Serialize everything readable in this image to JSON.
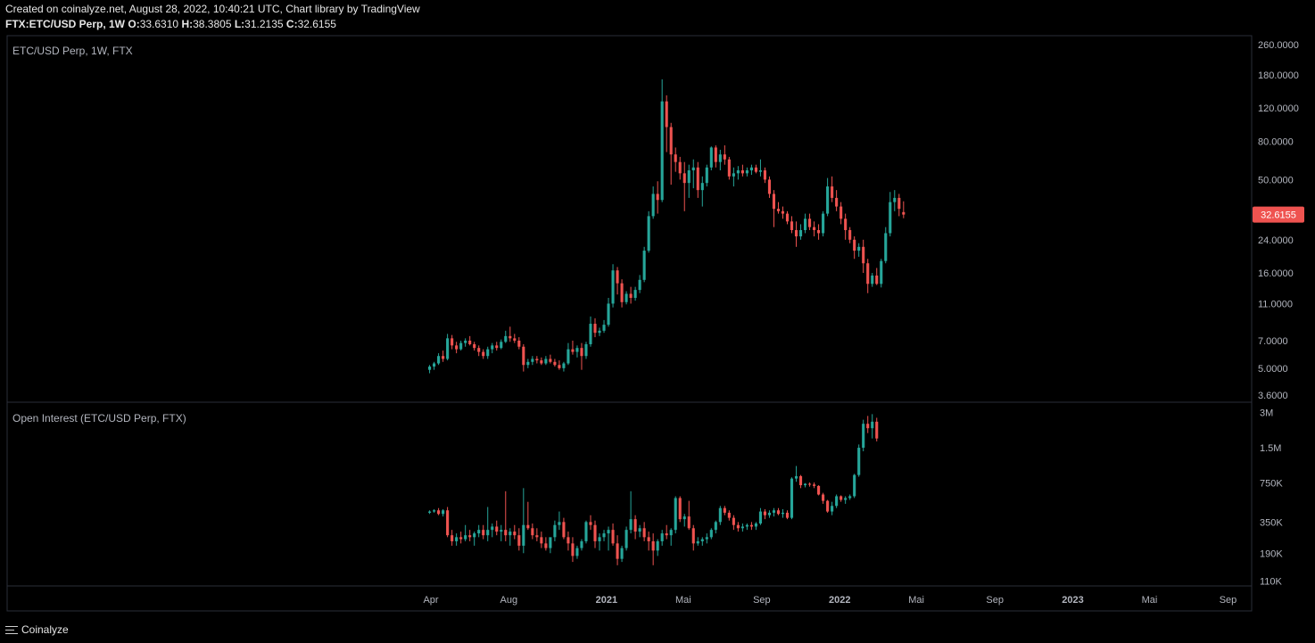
{
  "header": {
    "line1": "Created on coinalyze.net, August 28, 2022, 10:40:21 UTC, Chart library by TradingView",
    "symbol_line": "FTX:ETC/USD Perp, 1W",
    "o_label": "O:",
    "o_value": "33.6310",
    "h_label": "H:",
    "h_value": "38.3805",
    "l_label": "L:",
    "l_value": "31.2135",
    "c_label": "C:",
    "c_value": "32.6155"
  },
  "footer": {
    "brand": "Coinalyze",
    "menu_icon": "hamburger-menu-icon"
  },
  "colors": {
    "up": "#26a69a",
    "down": "#ef5350",
    "grid": "#2a2e39",
    "text": "#b2b5be",
    "last_price_bg": "#ef5350"
  },
  "chart_data": [
    {
      "type": "candlestick",
      "title": "ETC/USD Perp, 1W, FTX",
      "scale": "log",
      "ylim": [
        3.3,
        290
      ],
      "y_ticks": [
        "260.0000",
        "180.0000",
        "120.0000",
        "80.0000",
        "50.0000",
        "24.0000",
        "16.0000",
        "11.0000",
        "7.0000",
        "5.0000",
        "3.6000"
      ],
      "last_value_label": "32.6155",
      "x_range": [
        "2020-04-01",
        "2023-10-01"
      ],
      "x_ticks": [
        {
          "date": "2020-04-01",
          "label": "Apr",
          "bold": false
        },
        {
          "date": "2020-08-01",
          "label": "Aug",
          "bold": false
        },
        {
          "date": "2021-01-01",
          "label": "2021",
          "bold": true
        },
        {
          "date": "2021-05-01",
          "label": "Mai",
          "bold": false
        },
        {
          "date": "2021-09-01",
          "label": "Sep",
          "bold": false
        },
        {
          "date": "2022-01-01",
          "label": "2022",
          "bold": true
        },
        {
          "date": "2022-05-01",
          "label": "Mai",
          "bold": false
        },
        {
          "date": "2022-09-01",
          "label": "Sep",
          "bold": false
        },
        {
          "date": "2023-01-01",
          "label": "2023",
          "bold": true
        },
        {
          "date": "2023-05-01",
          "label": "Mai",
          "bold": false
        },
        {
          "date": "2023-09-01",
          "label": "Sep",
          "bold": false
        }
      ],
      "start_date": "2020-03-30",
      "ohlc": [
        [
          4.9,
          5.2,
          4.7,
          5.1
        ],
        [
          5.1,
          5.4,
          4.9,
          5.3
        ],
        [
          5.3,
          6.0,
          5.2,
          5.8
        ],
        [
          5.8,
          6.2,
          5.4,
          5.6
        ],
        [
          5.6,
          7.6,
          5.5,
          7.2
        ],
        [
          7.2,
          7.5,
          6.3,
          6.6
        ],
        [
          6.6,
          6.9,
          6.0,
          6.3
        ],
        [
          6.3,
          7.0,
          6.2,
          6.8
        ],
        [
          6.8,
          7.2,
          6.5,
          7.0
        ],
        [
          7.0,
          7.4,
          6.6,
          6.7
        ],
        [
          6.7,
          6.9,
          6.2,
          6.4
        ],
        [
          6.4,
          6.6,
          5.8,
          6.1
        ],
        [
          6.1,
          6.3,
          5.6,
          5.8
        ],
        [
          5.8,
          6.5,
          5.6,
          6.3
        ],
        [
          6.3,
          6.8,
          6.0,
          6.6
        ],
        [
          6.6,
          6.9,
          6.2,
          6.4
        ],
        [
          6.4,
          7.1,
          6.3,
          6.9
        ],
        [
          6.9,
          7.9,
          6.8,
          7.4
        ],
        [
          7.4,
          8.3,
          6.9,
          7.2
        ],
        [
          7.2,
          7.6,
          6.8,
          7.0
        ],
        [
          7.0,
          7.3,
          6.3,
          6.5
        ],
        [
          6.5,
          6.7,
          4.8,
          5.2
        ],
        [
          5.2,
          5.6,
          5.0,
          5.4
        ],
        [
          5.4,
          5.8,
          5.2,
          5.6
        ],
        [
          5.6,
          5.8,
          5.3,
          5.5
        ],
        [
          5.5,
          5.7,
          5.2,
          5.3
        ],
        [
          5.3,
          5.8,
          5.2,
          5.6
        ],
        [
          5.6,
          5.9,
          5.3,
          5.4
        ],
        [
          5.4,
          5.6,
          5.1,
          5.2
        ],
        [
          5.2,
          5.5,
          4.9,
          5.0
        ],
        [
          5.0,
          5.4,
          4.8,
          5.3
        ],
        [
          5.3,
          6.8,
          5.2,
          6.3
        ],
        [
          6.3,
          7.0,
          5.9,
          6.1
        ],
        [
          6.1,
          6.6,
          5.7,
          6.4
        ],
        [
          6.4,
          6.8,
          4.9,
          5.8
        ],
        [
          5.8,
          6.9,
          5.6,
          6.7
        ],
        [
          6.7,
          9.4,
          6.5,
          8.6
        ],
        [
          8.6,
          9.2,
          7.3,
          7.7
        ],
        [
          7.7,
          8.2,
          7.4,
          7.9
        ],
        [
          7.9,
          9.0,
          7.7,
          8.5
        ],
        [
          8.5,
          11.8,
          8.3,
          11.0
        ],
        [
          11.0,
          17.8,
          10.5,
          16.5
        ],
        [
          16.5,
          17.2,
          12.3,
          14.1
        ],
        [
          14.1,
          14.8,
          10.5,
          11.2
        ],
        [
          11.2,
          12.8,
          10.9,
          12.4
        ],
        [
          12.4,
          13.5,
          11.0,
          11.8
        ],
        [
          11.8,
          13.5,
          11.4,
          13.0
        ],
        [
          13.0,
          15.6,
          12.5,
          14.7
        ],
        [
          14.7,
          22.0,
          14.3,
          21.0
        ],
        [
          21.0,
          34.0,
          20.5,
          32.0
        ],
        [
          32.0,
          46.0,
          31.0,
          42.0
        ],
        [
          42.0,
          49.0,
          33.0,
          39.0
        ],
        [
          39.0,
          170.0,
          38.0,
          130.0
        ],
        [
          130.0,
          140.0,
          70.0,
          95.0
        ],
        [
          95.0,
          100.0,
          47.0,
          68.0
        ],
        [
          68.0,
          74.0,
          55.0,
          62.0
        ],
        [
          62.0,
          66.0,
          50.0,
          54.0
        ],
        [
          54.0,
          62.0,
          34.0,
          48.0
        ],
        [
          48.0,
          60.0,
          40.0,
          56.0
        ],
        [
          56.0,
          64.0,
          45.0,
          58.0
        ],
        [
          58.0,
          62.0,
          40.0,
          44.0
        ],
        [
          44.0,
          52.0,
          36.0,
          48.0
        ],
        [
          48.0,
          60.0,
          46.0,
          58.0
        ],
        [
          58.0,
          75.0,
          56.0,
          74.0
        ],
        [
          74.0,
          76.0,
          58.0,
          62.0
        ],
        [
          62.0,
          72.0,
          56.0,
          68.0
        ],
        [
          68.0,
          76.0,
          60.0,
          64.0
        ],
        [
          64.0,
          66.0,
          50.0,
          52.0
        ],
        [
          52.0,
          58.0,
          46.0,
          54.0
        ],
        [
          54.0,
          59.0,
          50.0,
          56.0
        ],
        [
          56.0,
          60.0,
          52.0,
          54.0
        ],
        [
          54.0,
          58.0,
          52.0,
          56.0
        ],
        [
          56.0,
          60.0,
          53.0,
          58.0
        ],
        [
          58.0,
          60.0,
          54.0,
          55.0
        ],
        [
          55.0,
          64.0,
          52.0,
          56.0
        ],
        [
          56.0,
          58.0,
          48.0,
          50.0
        ],
        [
          50.0,
          52.0,
          40.0,
          42.0
        ],
        [
          42.0,
          44.0,
          28.0,
          35.0
        ],
        [
          35.0,
          38.0,
          33.0,
          34.0
        ],
        [
          34.0,
          36.0,
          31.0,
          33.0
        ],
        [
          33.0,
          34.0,
          29.0,
          30.0
        ],
        [
          30.0,
          32.0,
          26.0,
          27.0
        ],
        [
          27.0,
          30.0,
          22.0,
          25.0
        ],
        [
          25.0,
          29.0,
          24.0,
          27.0
        ],
        [
          27.0,
          33.0,
          26.0,
          31.0
        ],
        [
          31.0,
          33.0,
          27.0,
          28.0
        ],
        [
          28.0,
          30.0,
          25.0,
          27.0
        ],
        [
          27.0,
          29.0,
          24.0,
          26.0
        ],
        [
          26.0,
          34.0,
          25.0,
          33.0
        ],
        [
          33.0,
          51.0,
          32.0,
          46.0
        ],
        [
          46.0,
          52.0,
          38.0,
          40.0
        ],
        [
          40.0,
          44.0,
          34.0,
          36.0
        ],
        [
          36.0,
          38.0,
          29.0,
          31.0
        ],
        [
          31.0,
          33.0,
          24.0,
          27.0
        ],
        [
          27.0,
          28.0,
          23.0,
          24.0
        ],
        [
          24.0,
          25.0,
          19.0,
          21.0
        ],
        [
          21.0,
          23.0,
          19.5,
          22.0
        ],
        [
          22.0,
          24.0,
          16.0,
          18.0
        ],
        [
          18.0,
          19.0,
          12.5,
          14.0
        ],
        [
          14.0,
          16.0,
          13.5,
          15.5
        ],
        [
          15.5,
          17.0,
          13.8,
          14.0
        ],
        [
          14.0,
          19.0,
          13.4,
          18.5
        ],
        [
          18.5,
          28.0,
          18.0,
          26.0
        ],
        [
          26.0,
          43.0,
          25.0,
          38.0
        ],
        [
          38.0,
          44.0,
          34.0,
          40.0
        ],
        [
          40.0,
          42.0,
          32.0,
          35.0
        ],
        [
          33.63,
          38.38,
          31.21,
          32.62
        ]
      ]
    },
    {
      "type": "candlestick",
      "title": "Open Interest (ETC/USD Perp, FTX)",
      "scale": "log",
      "ylim": [
        100000,
        3600000
      ],
      "y_ticks": [
        "3M",
        "1.5M",
        "750K",
        "350K",
        "190K",
        "110K"
      ],
      "y_tick_values": [
        3000000,
        1500000,
        750000,
        350000,
        190000,
        110000
      ],
      "ohlc": [
        [
          420,
          440,
          410,
          430
        ],
        [
          430,
          450,
          420,
          440
        ],
        [
          440,
          460,
          400,
          410
        ],
        [
          410,
          450,
          390,
          440
        ],
        [
          440,
          470,
          260,
          270
        ],
        [
          270,
          300,
          220,
          240
        ],
        [
          240,
          280,
          220,
          260
        ],
        [
          260,
          290,
          230,
          250
        ],
        [
          250,
          330,
          240,
          270
        ],
        [
          270,
          300,
          240,
          260
        ],
        [
          260,
          290,
          220,
          280
        ],
        [
          280,
          330,
          260,
          300
        ],
        [
          300,
          330,
          250,
          270
        ],
        [
          270,
          470,
          240,
          300
        ],
        [
          300,
          340,
          260,
          320
        ],
        [
          320,
          360,
          270,
          290
        ],
        [
          290,
          330,
          240,
          300
        ],
        [
          300,
          640,
          240,
          270
        ],
        [
          270,
          310,
          220,
          290
        ],
        [
          290,
          330,
          250,
          270
        ],
        [
          270,
          310,
          200,
          220
        ],
        [
          220,
          680,
          190,
          330
        ],
        [
          330,
          520,
          300,
          310
        ],
        [
          310,
          340,
          250,
          270
        ],
        [
          270,
          310,
          240,
          260
        ],
        [
          260,
          290,
          210,
          230
        ],
        [
          230,
          260,
          200,
          210
        ],
        [
          210,
          240,
          190,
          260
        ],
        [
          260,
          360,
          240,
          330
        ],
        [
          330,
          430,
          300,
          350
        ],
        [
          350,
          380,
          250,
          260
        ],
        [
          260,
          290,
          200,
          230
        ],
        [
          230,
          260,
          160,
          180
        ],
        [
          180,
          220,
          170,
          210
        ],
        [
          210,
          250,
          200,
          240
        ],
        [
          240,
          360,
          230,
          350
        ],
        [
          350,
          400,
          300,
          330
        ],
        [
          330,
          360,
          210,
          240
        ],
        [
          240,
          280,
          200,
          260
        ],
        [
          260,
          300,
          240,
          280
        ],
        [
          280,
          320,
          200,
          300
        ],
        [
          300,
          340,
          220,
          230
        ],
        [
          230,
          270,
          150,
          170
        ],
        [
          170,
          220,
          160,
          210
        ],
        [
          210,
          320,
          200,
          300
        ],
        [
          300,
          640,
          280,
          370
        ],
        [
          370,
          400,
          250,
          290
        ],
        [
          290,
          330,
          260,
          310
        ],
        [
          310,
          350,
          240,
          260
        ],
        [
          260,
          290,
          200,
          240
        ],
        [
          240,
          280,
          150,
          200
        ],
        [
          200,
          250,
          180,
          240
        ],
        [
          240,
          300,
          220,
          280
        ],
        [
          280,
          330,
          250,
          270
        ],
        [
          270,
          310,
          220,
          300
        ],
        [
          300,
          580,
          280,
          560
        ],
        [
          560,
          580,
          350,
          370
        ],
        [
          370,
          410,
          320,
          390
        ],
        [
          390,
          530,
          300,
          310
        ],
        [
          310,
          330,
          200,
          230
        ],
        [
          230,
          260,
          220,
          240
        ],
        [
          240,
          260,
          220,
          250
        ],
        [
          250,
          280,
          230,
          260
        ],
        [
          260,
          310,
          250,
          300
        ],
        [
          300,
          360,
          280,
          350
        ],
        [
          350,
          480,
          330,
          460
        ],
        [
          460,
          480,
          400,
          420
        ],
        [
          420,
          440,
          360,
          380
        ],
        [
          380,
          400,
          300,
          330
        ],
        [
          330,
          350,
          290,
          310
        ],
        [
          310,
          340,
          290,
          320
        ],
        [
          320,
          340,
          300,
          330
        ],
        [
          330,
          350,
          300,
          320
        ],
        [
          320,
          350,
          300,
          340
        ],
        [
          340,
          460,
          330,
          430
        ],
        [
          430,
          450,
          370,
          400
        ],
        [
          400,
          440,
          380,
          420
        ],
        [
          420,
          460,
          390,
          440
        ],
        [
          440,
          460,
          400,
          410
        ],
        [
          410,
          450,
          380,
          420
        ],
        [
          420,
          440,
          370,
          380
        ],
        [
          380,
          840,
          370,
          820
        ],
        [
          820,
          1050,
          770,
          860
        ],
        [
          860,
          880,
          680,
          720
        ],
        [
          720,
          750,
          690,
          740
        ],
        [
          740,
          760,
          700,
          730
        ],
        [
          730,
          760,
          680,
          710
        ],
        [
          710,
          720,
          590,
          600
        ],
        [
          600,
          620,
          500,
          530
        ],
        [
          530,
          540,
          420,
          430
        ],
        [
          430,
          520,
          400,
          480
        ],
        [
          480,
          600,
          460,
          580
        ],
        [
          580,
          590,
          520,
          540
        ],
        [
          540,
          580,
          500,
          560
        ],
        [
          560,
          600,
          540,
          580
        ],
        [
          580,
          900,
          560,
          880
        ],
        [
          880,
          1600,
          850,
          1500
        ],
        [
          1500,
          2600,
          1400,
          2400
        ],
        [
          2400,
          2800,
          2000,
          2200
        ],
        [
          2200,
          2900,
          1800,
          2500
        ],
        [
          2500,
          2700,
          1700,
          1800
        ]
      ],
      "ohlc_unit": 1000
    }
  ]
}
